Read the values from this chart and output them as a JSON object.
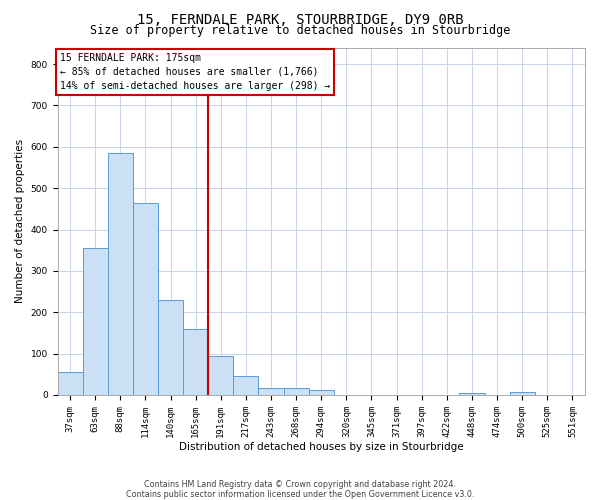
{
  "title": "15, FERNDALE PARK, STOURBRIDGE, DY9 0RB",
  "subtitle": "Size of property relative to detached houses in Stourbridge",
  "xlabel": "Distribution of detached houses by size in Stourbridge",
  "ylabel": "Number of detached properties",
  "categories": [
    "37sqm",
    "63sqm",
    "88sqm",
    "114sqm",
    "140sqm",
    "165sqm",
    "191sqm",
    "217sqm",
    "243sqm",
    "268sqm",
    "294sqm",
    "320sqm",
    "345sqm",
    "371sqm",
    "397sqm",
    "422sqm",
    "448sqm",
    "474sqm",
    "500sqm",
    "525sqm",
    "551sqm"
  ],
  "values": [
    55,
    355,
    585,
    465,
    230,
    160,
    95,
    45,
    18,
    18,
    12,
    0,
    0,
    0,
    0,
    0,
    5,
    0,
    8,
    0,
    0
  ],
  "bar_color": "#cce0f5",
  "bar_edge_color": "#5b9bd5",
  "red_line_x": 5.5,
  "red_line_color": "#cc0000",
  "annotation_line1": "15 FERNDALE PARK: 175sqm",
  "annotation_line2": "← 85% of detached houses are smaller (1,766)",
  "annotation_line3": "14% of semi-detached houses are larger (298) →",
  "annotation_box_facecolor": "#ffffff",
  "annotation_box_edgecolor": "#cc0000",
  "ylim_max": 840,
  "yticks": [
    0,
    100,
    200,
    300,
    400,
    500,
    600,
    700,
    800
  ],
  "footer1": "Contains HM Land Registry data © Crown copyright and database right 2024.",
  "footer2": "Contains public sector information licensed under the Open Government Licence v3.0.",
  "bg_color": "#ffffff",
  "grid_color": "#c8d4e8",
  "title_fontsize": 10,
  "subtitle_fontsize": 8.5,
  "tick_fontsize": 6.5,
  "ylabel_fontsize": 7.5,
  "xlabel_fontsize": 7.5,
  "annotation_fontsize": 7,
  "footer_fontsize": 5.8
}
